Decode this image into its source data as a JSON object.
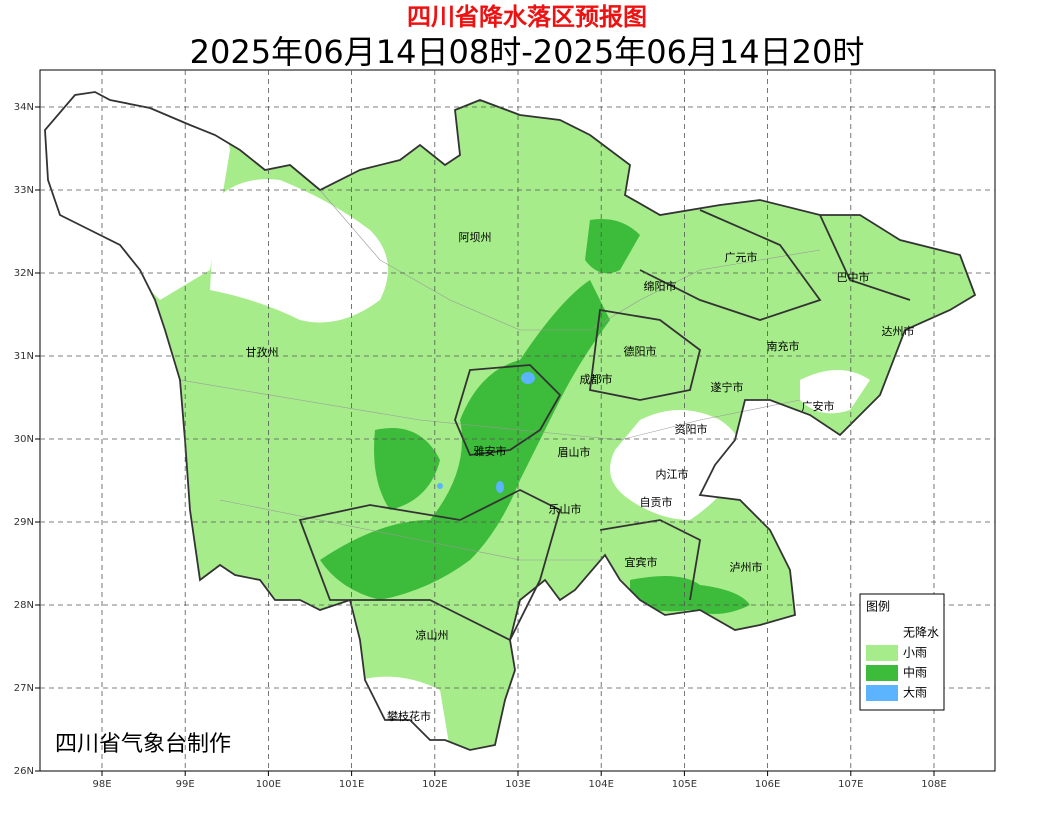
{
  "header": {
    "title": "四川省降水落区预报图",
    "subtitle": "2025年06月14日08时-2025年06月14日20时"
  },
  "axes": {
    "x_ticks": [
      "98E",
      "99E",
      "100E",
      "101E",
      "102E",
      "103E",
      "104E",
      "105E",
      "106E",
      "107E",
      "108E"
    ],
    "y_ticks": [
      "34N",
      "33N",
      "32N",
      "31N",
      "30N",
      "29N",
      "28N",
      "27N",
      "26N"
    ]
  },
  "places": [
    "阿坝州",
    "广元市",
    "巴中市",
    "绵阳市",
    "达州市",
    "甘孜州",
    "德阳市",
    "南充市",
    "成都市",
    "遂宁市",
    "广安市",
    "资阳市",
    "雅安市",
    "眉山市",
    "内江市",
    "自贡市",
    "乐山市",
    "宜宾市",
    "泸州市",
    "凉山州",
    "攀枝花市"
  ],
  "legend": {
    "title": "图例",
    "items": [
      {
        "label": "无降水",
        "color": "#ffffff"
      },
      {
        "label": "小雨",
        "color": "#a6ec8a"
      },
      {
        "label": "中雨",
        "color": "#3dbb3a"
      },
      {
        "label": "大雨",
        "color": "#5cb4ff"
      }
    ]
  },
  "credit": "四川省气象台制作"
}
